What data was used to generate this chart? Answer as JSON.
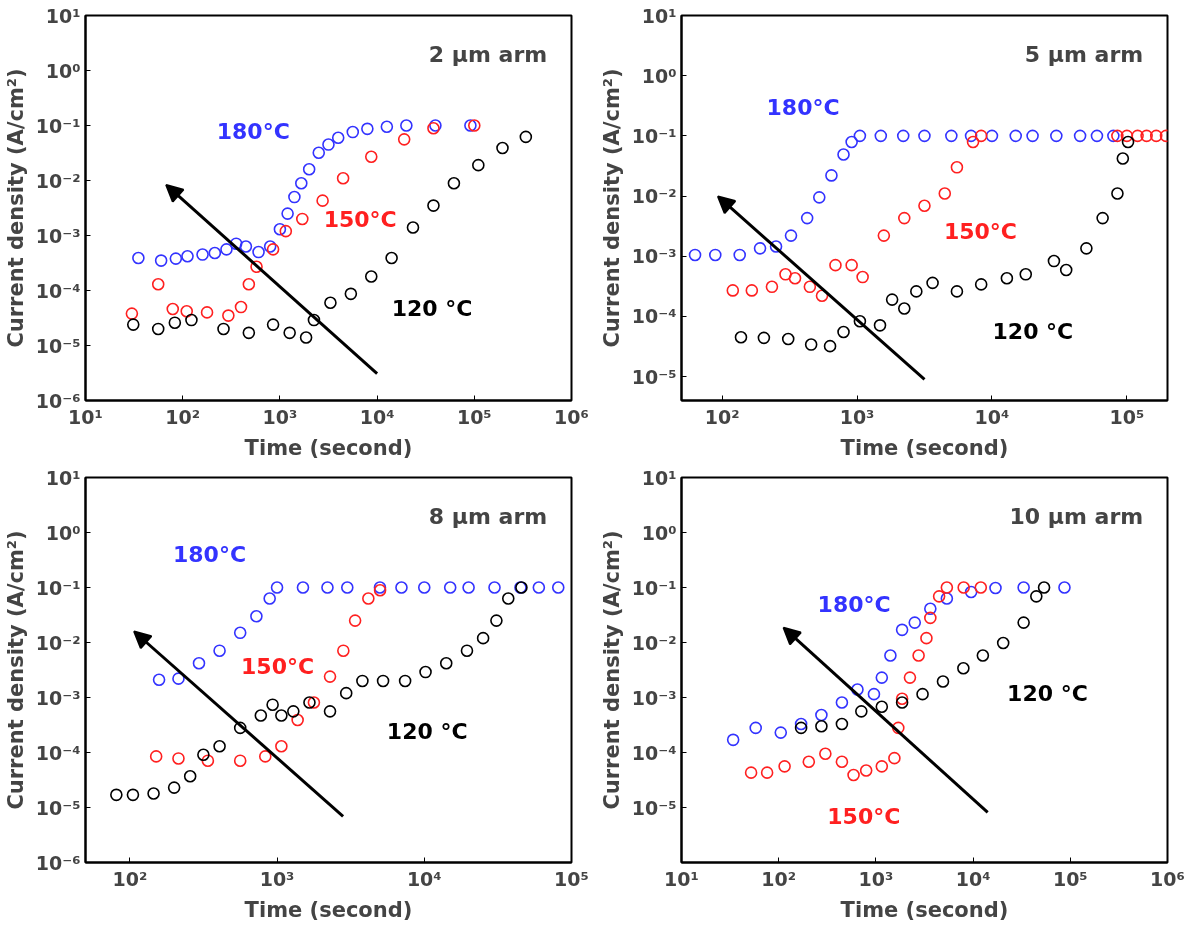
{
  "chart_data": [
    {
      "type": "scatter",
      "title": "2 µm arm",
      "xlabel": "Time (second)",
      "ylabel": "Current density (A/cm²)",
      "log": "xy",
      "marker": "circle",
      "grid": false,
      "legend": false,
      "xlim": [
        10,
        1000000
      ],
      "ylim": [
        1e-06,
        10
      ],
      "xticks": [
        {
          "value": 10,
          "label": "10¹"
        },
        {
          "value": 100,
          "label": "10²"
        },
        {
          "value": 1000,
          "label": "10³"
        },
        {
          "value": 10000,
          "label": "10⁴"
        },
        {
          "value": 100000,
          "label": "10⁵"
        },
        {
          "value": 1000000,
          "label": "10⁶"
        }
      ],
      "yticks": [
        {
          "value": 1e-06,
          "label": "10⁻⁶"
        },
        {
          "value": 1e-05,
          "label": "10⁻⁵"
        },
        {
          "value": 0.0001,
          "label": "10⁻⁴"
        },
        {
          "value": 0.001,
          "label": "10⁻³"
        },
        {
          "value": 0.01,
          "label": "10⁻²"
        },
        {
          "value": 0.1,
          "label": "10⁻¹"
        },
        {
          "value": 1,
          "label": "10⁰"
        },
        {
          "value": 10,
          "label": "10¹"
        }
      ],
      "series": [
        {
          "name": "180°C",
          "color": "#3333ff",
          "x": [
            35,
            60,
            85,
            112,
            160,
            214,
            282,
            355,
            447,
            603,
            794,
            1000,
            1200,
            1410,
            1660,
            2000,
            2510,
            3160,
            3980,
            5620,
            7940,
            12600,
            20000,
            39800,
            91200
          ],
          "values": [
            0.00039,
            0.00035,
            0.00038,
            0.00042,
            0.00045,
            0.00048,
            0.00056,
            0.00071,
            0.00063,
            0.0005,
            0.00063,
            0.0013,
            0.0025,
            0.005,
            0.0089,
            0.016,
            0.032,
            0.045,
            0.06,
            0.076,
            0.087,
            0.095,
            0.1,
            0.1,
            0.1
          ]
        },
        {
          "name": "150°C",
          "color": "#ff2020",
          "x": [
            30,
            56,
            79,
            110,
            178,
            295,
            398,
            479,
            575,
            851,
            1150,
            1700,
            2750,
            4470,
            8710,
            19000,
            38000,
            100000
          ],
          "values": [
            3.8e-05,
            0.00013,
            4.6e-05,
            4.2e-05,
            4e-05,
            3.5e-05,
            5e-05,
            0.00013,
            0.00027,
            0.00056,
            0.0012,
            0.002,
            0.0043,
            0.011,
            0.027,
            0.056,
            0.089,
            0.1
          ]
        },
        {
          "name": "120 °C",
          "color": "#000000",
          "x": [
            31,
            56,
            83,
            123,
            263,
            479,
            851,
            1260,
            1860,
            2240,
            3310,
            5370,
            8710,
            14100,
            23400,
            38000,
            61700,
            110000,
            195000,
            339000
          ],
          "values": [
            2.4e-05,
            2e-05,
            2.6e-05,
            2.9e-05,
            2e-05,
            1.7e-05,
            2.4e-05,
            1.7e-05,
            1.4e-05,
            2.9e-05,
            6e-05,
            8.7e-05,
            0.00018,
            0.00039,
            0.0014,
            0.0035,
            0.0089,
            0.019,
            0.039,
            0.062
          ]
        }
      ]
    },
    {
      "type": "scatter",
      "title": "5 µm arm",
      "xlabel": "Time (second)",
      "ylabel": "Current density (A/cm²)",
      "log": "xy",
      "marker": "circle",
      "grid": false,
      "legend": false,
      "xlim": [
        50,
        200000
      ],
      "ylim": [
        4e-06,
        10
      ],
      "xticks": [
        {
          "value": 100,
          "label": "10²"
        },
        {
          "value": 1000,
          "label": "10³"
        },
        {
          "value": 10000,
          "label": "10⁴"
        },
        {
          "value": 100000,
          "label": "10⁵"
        }
      ],
      "yticks": [
        {
          "value": 1e-05,
          "label": "10⁻⁵"
        },
        {
          "value": 0.0001,
          "label": "10⁻⁴"
        },
        {
          "value": 0.001,
          "label": "10⁻³"
        },
        {
          "value": 0.01,
          "label": "10⁻²"
        },
        {
          "value": 0.1,
          "label": "10⁻¹"
        },
        {
          "value": 1,
          "label": "10⁰"
        },
        {
          "value": 10,
          "label": "10¹"
        }
      ],
      "series": [
        {
          "name": "180°C",
          "color": "#3333ff",
          "x": [
            63,
            89,
            135,
            191,
            251,
            324,
            427,
            525,
            646,
            794,
            912,
            1050,
            1500,
            2200,
            3160,
            5000,
            7000,
            10000,
            15000,
            20000,
            30000,
            45000,
            60000,
            79400
          ],
          "values": [
            0.00105,
            0.00105,
            0.00105,
            0.00135,
            0.00145,
            0.0022,
            0.0043,
            0.0095,
            0.022,
            0.049,
            0.079,
            0.1,
            0.1,
            0.1,
            0.1,
            0.1,
            0.1,
            0.1,
            0.1,
            0.1,
            0.1,
            0.1,
            0.1,
            0.1
          ]
        },
        {
          "name": "150°C",
          "color": "#ff2020",
          "x": [
            120,
            166,
            234,
            295,
            347,
            447,
            550,
            692,
            912,
            1100,
            1580,
            2240,
            3160,
            4470,
            5500,
            7240,
            8320,
            85000,
            100000,
            120000,
            140000,
            165000,
            195000
          ],
          "values": [
            0.00027,
            0.00027,
            0.00031,
            0.0005,
            0.00043,
            0.00031,
            0.00022,
            0.00071,
            0.00071,
            0.00045,
            0.0022,
            0.0043,
            0.0069,
            0.011,
            0.03,
            0.079,
            0.1,
            0.1,
            0.1,
            0.1,
            0.1,
            0.1,
            0.1
          ]
        },
        {
          "name": "120 °C",
          "color": "#000000",
          "x": [
            138,
            204,
            309,
            457,
            631,
            794,
            1050,
            1480,
            1820,
            2240,
            2750,
            3630,
            5500,
            8320,
            12900,
            17800,
            28800,
            35500,
            50100,
            66100,
            85100,
            93300,
            102000
          ],
          "values": [
            4.5e-05,
            4.4e-05,
            4.2e-05,
            3.4e-05,
            3.2e-05,
            5.5e-05,
            8.3e-05,
            7.1e-05,
            0.00019,
            0.000135,
            0.00026,
            0.00036,
            0.00026,
            0.00034,
            0.00043,
            0.0005,
            0.00083,
            0.00059,
            0.00135,
            0.0043,
            0.011,
            0.042,
            0.079
          ]
        }
      ]
    },
    {
      "type": "scatter",
      "title": "8 µm arm",
      "xlabel": "Time (second)",
      "ylabel": "Current density (A/cm²)",
      "log": "xy",
      "marker": "circle",
      "grid": false,
      "legend": false,
      "xlim": [
        50,
        100000
      ],
      "ylim": [
        1e-06,
        10
      ],
      "xticks": [
        {
          "value": 100,
          "label": "10²"
        },
        {
          "value": 1000,
          "label": "10³"
        },
        {
          "value": 10000,
          "label": "10⁴"
        },
        {
          "value": 100000,
          "label": "10⁵"
        }
      ],
      "yticks": [
        {
          "value": 1e-06,
          "label": "10⁻⁶"
        },
        {
          "value": 1e-05,
          "label": "10⁻⁵"
        },
        {
          "value": 0.0001,
          "label": "10⁻⁴"
        },
        {
          "value": 0.001,
          "label": "10⁻³"
        },
        {
          "value": 0.01,
          "label": "10⁻²"
        },
        {
          "value": 0.1,
          "label": "10⁻¹"
        },
        {
          "value": 1,
          "label": "10⁰"
        },
        {
          "value": 10,
          "label": "10¹"
        }
      ],
      "series": [
        {
          "name": "180°C",
          "color": "#3333ff",
          "x": [
            158,
            214,
            295,
            407,
            562,
            724,
            891,
            1000,
            1500,
            2200,
            3000,
            5000,
            7000,
            10000,
            15000,
            20000,
            30000,
            45000,
            60000,
            81300
          ],
          "values": [
            0.0021,
            0.0022,
            0.0042,
            0.0071,
            0.015,
            0.03,
            0.063,
            0.1,
            0.1,
            0.1,
            0.1,
            0.1,
            0.1,
            0.1,
            0.1,
            0.1,
            0.1,
            0.1,
            0.1,
            0.1
          ]
        },
        {
          "name": "150°C",
          "color": "#ff2020",
          "x": [
            151,
            214,
            339,
            562,
            832,
            1070,
            1380,
            1780,
            2290,
            2820,
            3390,
            4170,
            5010
          ],
          "values": [
            8.5e-05,
            7.8e-05,
            7.1e-05,
            7.1e-05,
            8.5e-05,
            0.00013,
            0.00039,
            0.00081,
            0.0024,
            0.0071,
            0.025,
            0.063,
            0.089
          ]
        },
        {
          "name": "120 °C",
          "color": "#000000",
          "x": [
            81,
            105,
            145,
            200,
            257,
            316,
            407,
            562,
            776,
            933,
            1070,
            1290,
            1660,
            2290,
            2950,
            3800,
            5250,
            7410,
            10200,
            14100,
            19500,
            25100,
            30900,
            37200,
            45700
          ],
          "values": [
            1.7e-05,
            1.7e-05,
            1.8e-05,
            2.3e-05,
            3.7e-05,
            9.1e-05,
            0.00013,
            0.00028,
            0.00047,
            0.00074,
            0.00047,
            0.00056,
            0.00081,
            0.00056,
            0.0012,
            0.002,
            0.002,
            0.002,
            0.0029,
            0.0042,
            0.0071,
            0.012,
            0.025,
            0.063,
            0.1
          ]
        }
      ]
    },
    {
      "type": "scatter",
      "title": "10 µm arm",
      "xlabel": "Time (second)",
      "ylabel": "Current density (A/cm²)",
      "log": "xy",
      "marker": "circle",
      "grid": false,
      "legend": false,
      "xlim": [
        10,
        1000000
      ],
      "ylim": [
        1e-06,
        10
      ],
      "xticks": [
        {
          "value": 10,
          "label": "10¹"
        },
        {
          "value": 100,
          "label": "10²"
        },
        {
          "value": 1000,
          "label": "10³"
        },
        {
          "value": 10000,
          "label": "10⁴"
        },
        {
          "value": 100000,
          "label": "10⁵"
        },
        {
          "value": 1000000,
          "label": "10⁶"
        }
      ],
      "yticks": [
        {
          "value": 1e-05,
          "label": "10⁻⁵"
        },
        {
          "value": 0.0001,
          "label": "10⁻⁴"
        },
        {
          "value": 0.001,
          "label": "10⁻³"
        },
        {
          "value": 0.01,
          "label": "10⁻²"
        },
        {
          "value": 0.1,
          "label": "10⁻¹"
        },
        {
          "value": 1,
          "label": "10⁰"
        },
        {
          "value": 10,
          "label": "10¹"
        }
      ],
      "series": [
        {
          "name": "180°C",
          "color": "#3333ff",
          "x": [
            34,
            58,
            105,
            170,
            275,
            447,
            646,
            955,
            1150,
            1410,
            1860,
            2510,
            3630,
            5370,
            9550,
            17000,
            33100,
            87100
          ],
          "values": [
            0.00017,
            0.00028,
            0.00023,
            0.00033,
            0.00048,
            0.00081,
            0.0014,
            0.00115,
            0.0023,
            0.0058,
            0.017,
            0.023,
            0.041,
            0.063,
            0.083,
            0.098,
            0.1,
            0.1
          ]
        },
        {
          "name": "150°C",
          "color": "#ff2020",
          "x": [
            52,
            76,
            115,
            204,
            302,
            447,
            589,
            794,
            1150,
            1550,
            1700,
            1860,
            2240,
            2750,
            3310,
            3630,
            4470,
            5370,
            8000,
            12000
          ],
          "values": [
            4.3e-05,
            4.3e-05,
            5.6e-05,
            6.8e-05,
            9.5e-05,
            6.8e-05,
            3.9e-05,
            4.7e-05,
            5.6e-05,
            7.9e-05,
            0.00028,
            0.00095,
            0.0023,
            0.0058,
            0.012,
            0.028,
            0.069,
            0.1,
            0.1,
            0.1
          ]
        },
        {
          "name": "120 °C",
          "color": "#000000",
          "x": [
            170,
            275,
            447,
            708,
            1150,
            1860,
            3020,
            4900,
            7940,
            12600,
            20400,
            33100,
            44700,
            53700
          ],
          "values": [
            0.00028,
            0.0003,
            0.00033,
            0.00056,
            0.00068,
            0.00081,
            0.00115,
            0.00195,
            0.0034,
            0.0058,
            0.0098,
            0.023,
            0.069,
            0.1
          ]
        }
      ]
    }
  ]
}
